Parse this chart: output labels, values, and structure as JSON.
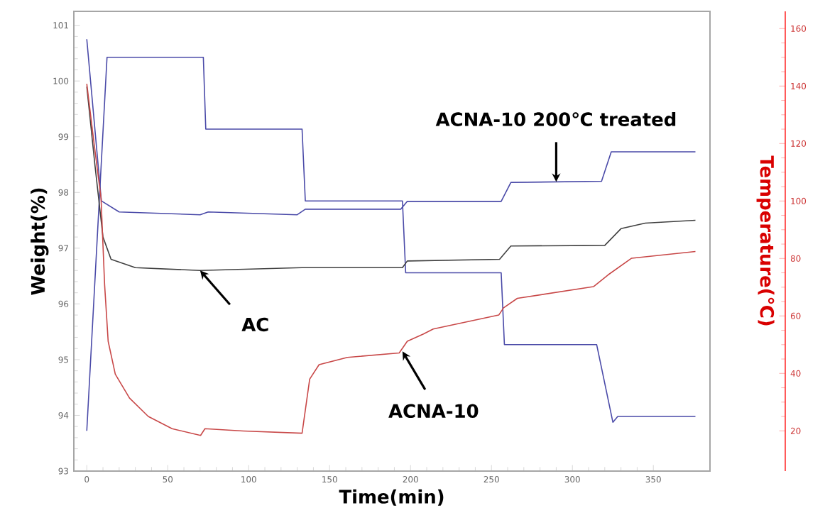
{
  "chart_data": {
    "type": "line",
    "xlabel": "Time(min)",
    "ylabel": "Weight(%)",
    "y2label": "Temperature(℃)",
    "xlim": [
      -8,
      385
    ],
    "ylim": [
      93,
      101.25
    ],
    "y2lim": [
      6,
      166
    ],
    "xticks": [
      0,
      50,
      100,
      150,
      200,
      250,
      300,
      350
    ],
    "yticks": [
      93,
      94,
      95,
      96,
      97,
      98,
      99,
      100,
      101
    ],
    "y2ticks": [
      20,
      40,
      60,
      80,
      100,
      120,
      140,
      160
    ],
    "grid": false,
    "marker": "none",
    "line_style": "solid",
    "annotations": [
      {
        "text": "ACNA-10 200℃ treated",
        "x": 290,
        "y": 98.19
      },
      {
        "text": "AC",
        "x": 70,
        "y": 96.6
      },
      {
        "text": "ACNA-10",
        "x": 195,
        "y": 95.15
      }
    ],
    "series": [
      {
        "color": "#4a4aa8",
        "axis": "y2",
        "x": [
          0,
          12.5,
          72,
          73.5,
          133,
          135,
          195,
          197,
          256,
          258,
          315,
          325,
          328,
          376
        ],
        "values": [
          20,
          150,
          150,
          125,
          125,
          100,
          100,
          75,
          75,
          50,
          50,
          23,
          25,
          25
        ]
      },
      {
        "color": "#4a4aa8",
        "x": [
          0,
          9,
          20,
          70,
          75,
          130,
          135,
          194,
          198,
          256,
          262,
          318,
          324,
          376
        ],
        "values": [
          100.75,
          97.85,
          97.65,
          97.6,
          97.65,
          97.6,
          97.7,
          97.7,
          97.84,
          97.84,
          98.18,
          98.2,
          98.73,
          98.73
        ]
      },
      {
        "color": "#404040",
        "x": [
          0,
          5,
          10,
          15,
          30,
          70,
          133,
          195,
          198,
          255,
          262,
          320,
          330,
          345,
          376
        ],
        "values": [
          99.9,
          98.5,
          97.2,
          96.8,
          96.65,
          96.6,
          96.65,
          96.65,
          96.77,
          96.8,
          97.04,
          97.05,
          97.35,
          97.45,
          97.5
        ]
      },
      {
        "color": "#c84848",
        "x": [
          0,
          4.4,
          8.8,
          11,
          13.2,
          17.6,
          26.4,
          38,
          52.7,
          70.3,
          73,
          96.7,
          133,
          137.7,
          143.5,
          161,
          193,
          198,
          208,
          214,
          254.5,
          257.5,
          266,
          313,
          322,
          336.6,
          376
        ],
        "values": [
          99.95,
          98.9,
          97.9,
          96.35,
          95.33,
          94.74,
          94.31,
          93.98,
          93.76,
          93.64,
          93.76,
          93.72,
          93.68,
          94.65,
          94.91,
          95.04,
          95.12,
          95.33,
          95.46,
          95.55,
          95.8,
          95.93,
          96.1,
          96.31,
          96.52,
          96.82,
          96.94
        ]
      }
    ]
  }
}
